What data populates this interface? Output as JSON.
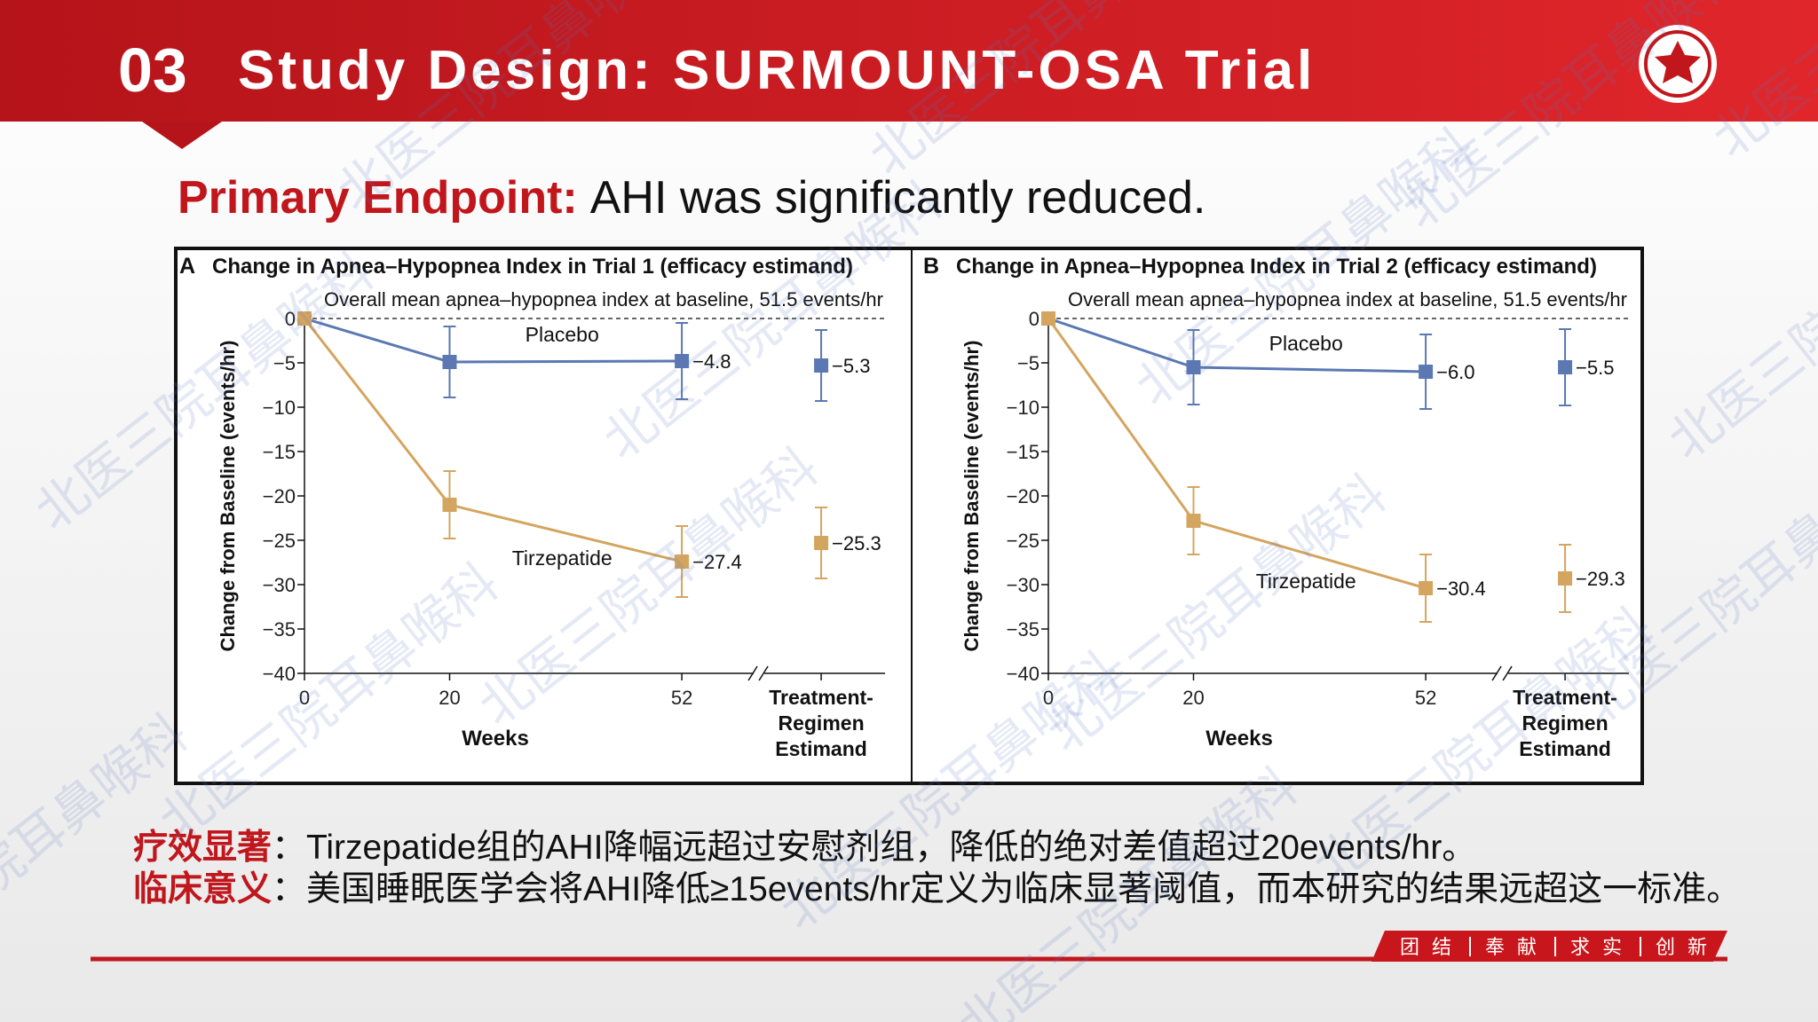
{
  "header": {
    "number": "03",
    "title": "Study Design: SURMOUNT-OSA Trial"
  },
  "subtitle": {
    "lead": "Primary Endpoint:",
    "text": "AHI was significantly reduced."
  },
  "chart_data": [
    {
      "type": "line",
      "panel": "A",
      "title": "Change in Apnea–Hypopnea Index in Trial 1 (efficacy estimand)",
      "annotation": "Overall mean apnea–hypopnea index at baseline, 51.5 events/hr",
      "x_label": "Weeks",
      "y_label": "Change from Baseline (events/hr)",
      "x": [
        0,
        20,
        52
      ],
      "xlim": [
        0,
        80
      ],
      "xticks": [
        0,
        20,
        52
      ],
      "ylim": [
        -40,
        0
      ],
      "yticks": [
        0,
        {
          "value": -5,
          "label": "−5"
        },
        {
          "value": -10,
          "label": "−10"
        },
        {
          "value": -15,
          "label": "−15"
        },
        {
          "value": -20,
          "label": "−20"
        },
        {
          "value": -25,
          "label": "−25"
        },
        {
          "value": -30,
          "label": "−30"
        },
        {
          "value": -35,
          "label": "−35"
        },
        {
          "value": -40,
          "label": "−40"
        }
      ],
      "estimand_label": [
        "Treatment-",
        "Regimen",
        "Estimand"
      ],
      "series": [
        {
          "name": "Placebo",
          "color": "#5b78b3",
          "values": [
            0,
            -4.9,
            -4.8
          ],
          "errors": [
            null,
            4,
            4.3
          ],
          "value_labels": [
            null,
            null,
            "−4.8"
          ],
          "estimand": {
            "value": -5.3,
            "error": 4,
            "label": "−5.3"
          }
        },
        {
          "name": "Tirzepatide",
          "color": "#d4a55f",
          "values": [
            0,
            -21,
            -27.4
          ],
          "errors": [
            null,
            3.8,
            4
          ],
          "value_labels": [
            null,
            null,
            "−27.4"
          ],
          "estimand": {
            "value": -25.3,
            "error": 4,
            "label": "−25.3"
          }
        }
      ]
    },
    {
      "type": "line",
      "panel": "B",
      "title": "Change in Apnea–Hypopnea Index in Trial 2 (efficacy estimand)",
      "annotation": "Overall mean apnea–hypopnea index at baseline, 51.5 events/hr",
      "x_label": "Weeks",
      "y_label": "Change from Baseline (events/hr)",
      "x": [
        0,
        20,
        52
      ],
      "xlim": [
        0,
        80
      ],
      "xticks": [
        0,
        20,
        52
      ],
      "ylim": [
        -40,
        0
      ],
      "yticks": [
        0,
        {
          "value": -5,
          "label": "−5"
        },
        {
          "value": -10,
          "label": "−10"
        },
        {
          "value": -15,
          "label": "−15"
        },
        {
          "value": -20,
          "label": "−20"
        },
        {
          "value": -25,
          "label": "−25"
        },
        {
          "value": -30,
          "label": "−30"
        },
        {
          "value": -35,
          "label": "−35"
        },
        {
          "value": -40,
          "label": "−40"
        }
      ],
      "estimand_label": [
        "Treatment-",
        "Regimen",
        "Estimand"
      ],
      "series": [
        {
          "name": "Placebo",
          "color": "#5b78b3",
          "values": [
            0,
            -5.5,
            -6.0
          ],
          "errors": [
            null,
            4.2,
            4.2
          ],
          "value_labels": [
            null,
            null,
            "−6.0"
          ],
          "estimand": {
            "value": -5.5,
            "error": 4.3,
            "label": "−5.5"
          }
        },
        {
          "name": "Tirzepatide",
          "color": "#d4a55f",
          "values": [
            0,
            -22.8,
            -30.4
          ],
          "errors": [
            null,
            3.8,
            3.8
          ],
          "value_labels": [
            null,
            null,
            "−30.4"
          ],
          "estimand": {
            "value": -29.3,
            "error": 3.8,
            "label": "−29.3"
          }
        }
      ]
    }
  ],
  "notes": [
    {
      "label": "疗效显著",
      "text": "：Tirzepatide组的AHI降幅远超过安慰剂组，降低的绝对差值超过20events/hr。"
    },
    {
      "label": "临床意义",
      "text": "：美国睡眠医学会将AHI降低≥15events/hr定义为临床显著阈值，而本研究的结果远超这一标准。"
    }
  ],
  "footer": {
    "motto": [
      "团 结",
      "奉 献",
      "求 实",
      "创 新"
    ]
  },
  "watermark": "北医三院耳鼻喉科"
}
